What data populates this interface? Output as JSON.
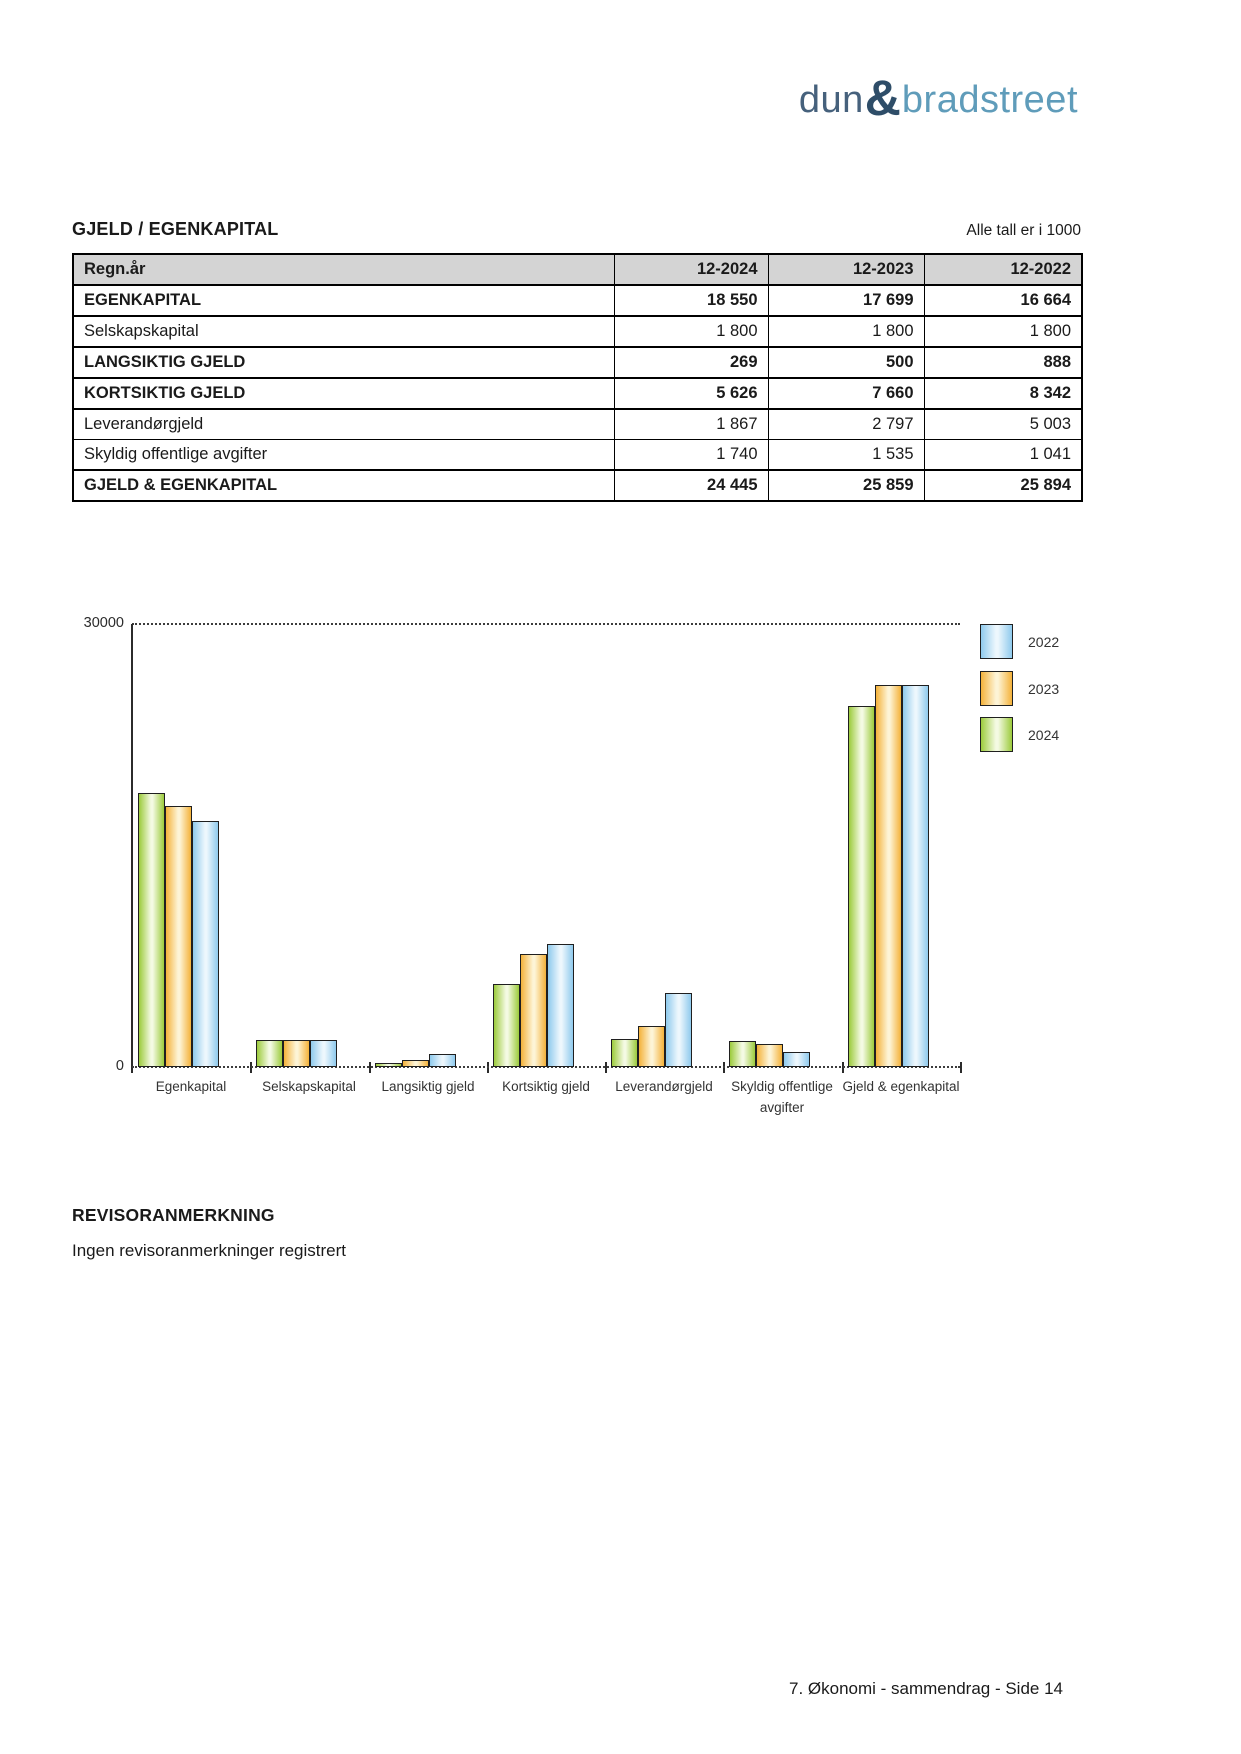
{
  "logo": {
    "dun": "dun",
    "ampersand": "&",
    "bradstreet": "bradstreet",
    "dun_color": "#46617c",
    "ampersand_color": "#2e4d68",
    "bradstreet_color": "#5f9cba"
  },
  "section": {
    "title": "GJELD / EGENKAPITAL",
    "note": "Alle tall er i 1000"
  },
  "table": {
    "header": [
      "Regn.år",
      "12-2024",
      "12-2023",
      "12-2022"
    ],
    "rows": [
      {
        "label": "EGENKAPITAL",
        "bold": true,
        "values": [
          "18 550",
          "17 699",
          "16 664"
        ]
      },
      {
        "label": "Selskapskapital",
        "bold": false,
        "values": [
          "1 800",
          "1 800",
          "1 800"
        ]
      },
      {
        "label": "LANGSIKTIG GJELD",
        "bold": true,
        "values": [
          "269",
          "500",
          "888"
        ]
      },
      {
        "label": "KORTSIKTIG GJELD",
        "bold": true,
        "values": [
          "5 626",
          "7 660",
          "8 342"
        ]
      },
      {
        "label": "Leverandørgjeld",
        "bold": false,
        "values": [
          "1 867",
          "2 797",
          "5 003"
        ]
      },
      {
        "label": "Skyldig offentlige avgifter",
        "bold": false,
        "values": [
          "1 740",
          "1 535",
          "1 041"
        ]
      },
      {
        "label": "GJELD & EGENKAPITAL",
        "bold": true,
        "values": [
          "24 445",
          "25 859",
          "25 894"
        ]
      }
    ]
  },
  "chart_data": {
    "type": "bar",
    "title": "",
    "xlabel": "",
    "ylabel": "",
    "ylim": [
      0,
      30000
    ],
    "yticks": [
      0,
      30000
    ],
    "grid": "dotted line at 30000 and at baseline",
    "legend_position": "right-top",
    "legend_order": [
      "2022",
      "2023",
      "2024"
    ],
    "categories": [
      "Egenkapital",
      "Selskapskapital",
      "Langsiktig gjeld",
      "Kortsiktig gjeld",
      "Leverandørgjeld",
      "Skyldig offentlige avgifter",
      "Gjeld & egenkapital"
    ],
    "series": [
      {
        "name": "2024",
        "edge_color": "#9ccb3c",
        "center_color": "#f4fae3",
        "values": [
          18550,
          1800,
          269,
          5626,
          1867,
          1740,
          24445
        ]
      },
      {
        "name": "2023",
        "edge_color": "#f4b23a",
        "center_color": "#fdf4d6",
        "values": [
          17699,
          1800,
          500,
          7660,
          2797,
          1535,
          25859
        ]
      },
      {
        "name": "2022",
        "edge_color": "#8fcaed",
        "center_color": "#edf7fd",
        "values": [
          16664,
          1800,
          888,
          8342,
          5003,
          1041,
          25894
        ]
      }
    ]
  },
  "revisor": {
    "heading": "REVISORANMERKNING",
    "body": "Ingen revisoranmerkninger registrert"
  },
  "footer": {
    "text": "7. Økonomi - sammendrag - Side 14"
  }
}
